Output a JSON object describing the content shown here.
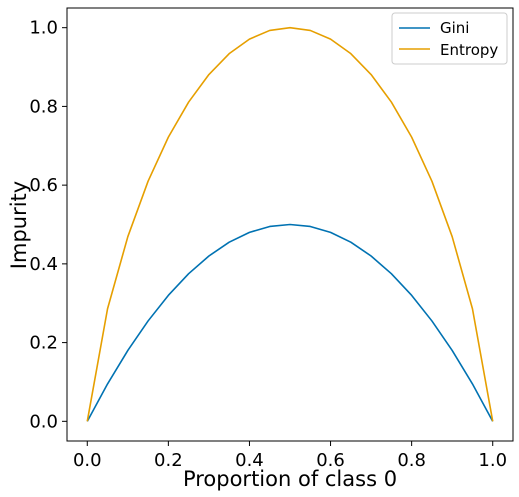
{
  "chart_data": {
    "type": "line",
    "title": "",
    "xlabel": "Proportion of class 0",
    "ylabel": "Impurity",
    "xlim": [
      -0.05,
      1.05
    ],
    "ylim": [
      -0.05,
      1.05
    ],
    "x_ticks": [
      0.0,
      0.2,
      0.4,
      0.6,
      0.8,
      1.0
    ],
    "x_tick_labels": [
      "0.0",
      "0.2",
      "0.4",
      "0.6",
      "0.8",
      "1.0"
    ],
    "y_ticks": [
      0.0,
      0.2,
      0.4,
      0.6,
      0.8,
      1.0
    ],
    "y_tick_labels": [
      "0.0",
      "0.2",
      "0.4",
      "0.6",
      "0.8",
      "1.0"
    ],
    "grid": false,
    "legend_position": "top-right",
    "x": [
      0.0,
      0.05,
      0.1,
      0.15,
      0.2,
      0.25,
      0.3,
      0.35,
      0.4,
      0.45,
      0.5,
      0.55,
      0.6,
      0.65,
      0.7,
      0.75,
      0.8,
      0.85,
      0.9,
      0.95,
      1.0
    ],
    "series": [
      {
        "name": "Gini",
        "color": "#0072B2",
        "values": [
          0.0,
          0.095,
          0.18,
          0.255,
          0.32,
          0.375,
          0.42,
          0.455,
          0.48,
          0.495,
          0.5,
          0.495,
          0.48,
          0.455,
          0.42,
          0.375,
          0.32,
          0.255,
          0.18,
          0.095,
          0.0
        ]
      },
      {
        "name": "Entropy",
        "color": "#E69F00",
        "values": [
          0.0,
          0.286,
          0.469,
          0.61,
          0.722,
          0.811,
          0.881,
          0.934,
          0.971,
          0.993,
          1.0,
          0.993,
          0.971,
          0.934,
          0.881,
          0.811,
          0.722,
          0.61,
          0.469,
          0.286,
          0.0
        ]
      }
    ]
  }
}
